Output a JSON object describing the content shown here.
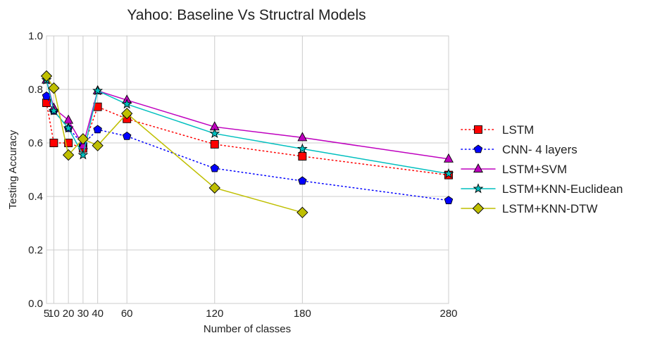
{
  "chart_data": {
    "type": "line",
    "title": "Yahoo: Baseline Vs Structral Models",
    "xlabel": "Number of classes",
    "ylabel": "Testing Accuracy",
    "xlim": [
      5,
      280
    ],
    "ylim": [
      0.0,
      1.0
    ],
    "x_ticks": [
      5,
      10,
      20,
      30,
      40,
      60,
      120,
      180,
      280
    ],
    "x_tick_labels": [
      "5",
      "10",
      "20",
      "30",
      "40",
      "60",
      "120",
      "180",
      "280"
    ],
    "y_ticks": [
      0.0,
      0.2,
      0.4,
      0.6,
      0.8,
      1.0
    ],
    "y_tick_labels": [
      "0.0",
      "0.2",
      "0.4",
      "0.6",
      "0.8",
      "1.0"
    ],
    "grid": true,
    "legend_position": "right",
    "series": [
      {
        "name": "LSTM",
        "color": "#ff0000",
        "line_style": "dotted",
        "marker": "square",
        "x": [
          5,
          10,
          20,
          30,
          40,
          60,
          120,
          180,
          280
        ],
        "y": [
          0.75,
          0.6,
          0.6,
          0.58,
          0.735,
          0.69,
          0.595,
          0.55,
          0.48
        ]
      },
      {
        "name": "CNN- 4 layers",
        "color": "#0000ff",
        "line_style": "dotted",
        "marker": "pentagon",
        "x": [
          5,
          10,
          20,
          30,
          40,
          60,
          120,
          180,
          280
        ],
        "y": [
          0.775,
          0.72,
          0.655,
          0.595,
          0.65,
          0.625,
          0.505,
          0.458,
          0.385
        ]
      },
      {
        "name": "LSTM+SVM",
        "color": "#bf00bf",
        "line_style": "solid",
        "marker": "triangle",
        "x": [
          5,
          10,
          20,
          30,
          40,
          60,
          120,
          180,
          280
        ],
        "y": [
          0.835,
          0.73,
          0.685,
          0.59,
          0.795,
          0.76,
          0.66,
          0.62,
          0.54
        ]
      },
      {
        "name": "LSTM+KNN-Euclidean",
        "color": "#00bfbf",
        "line_style": "solid",
        "marker": "star",
        "x": [
          5,
          10,
          20,
          30,
          40,
          60,
          120,
          180,
          280
        ],
        "y": [
          0.835,
          0.72,
          0.655,
          0.555,
          0.795,
          0.745,
          0.635,
          0.578,
          0.485
        ]
      },
      {
        "name": "LSTM+KNN-DTW",
        "color": "#bfbf00",
        "line_style": "solid",
        "marker": "diamond",
        "x": [
          5,
          10,
          20,
          30,
          40,
          60,
          120,
          180
        ],
        "y": [
          0.85,
          0.805,
          0.555,
          0.615,
          0.59,
          0.71,
          0.432,
          0.34
        ]
      }
    ]
  }
}
